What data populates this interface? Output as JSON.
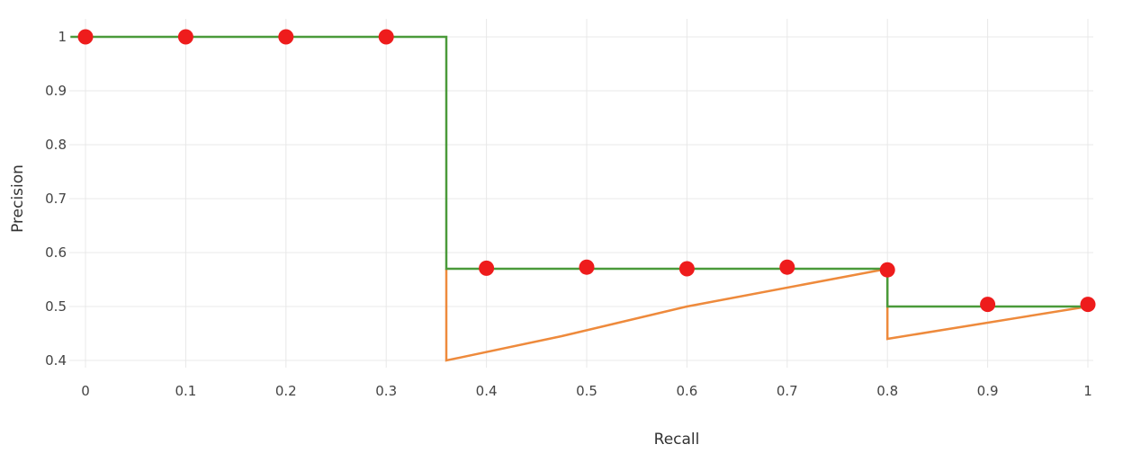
{
  "chart_data": {
    "type": "line",
    "title": "",
    "xlabel": "Recall",
    "ylabel": "Precision",
    "xlim": [
      0,
      1
    ],
    "ylim": [
      0.4,
      1
    ],
    "grid": true,
    "legend": "none",
    "x_ticks": [
      "0",
      "0.1",
      "0.2",
      "0.3",
      "0.4",
      "0.5",
      "0.6",
      "0.7",
      "0.8",
      "0.9",
      "1"
    ],
    "y_ticks": [
      "0.4",
      "0.5",
      "0.6",
      "0.7",
      "0.8",
      "0.9",
      "1"
    ],
    "series": [
      {
        "kind": "step-line",
        "color": "#4a9a3a",
        "points": [
          [
            -0.015,
            1
          ],
          [
            0.36,
            1
          ],
          [
            0.36,
            0.57
          ],
          [
            0.8,
            0.57
          ],
          [
            0.8,
            0.5
          ],
          [
            1,
            0.5
          ]
        ]
      },
      {
        "kind": "line",
        "color": "#ee8a3c",
        "points": [
          [
            0.36,
            0.57
          ],
          [
            0.36,
            0.4
          ],
          [
            0.475,
            0.445
          ],
          [
            0.6,
            0.5
          ],
          [
            0.8,
            0.57
          ],
          [
            0.8,
            0.44
          ],
          [
            1,
            0.5
          ]
        ]
      },
      {
        "kind": "scatter",
        "color": "#ee1c1c",
        "points": [
          [
            0,
            1
          ],
          [
            0.1,
            1
          ],
          [
            0.2,
            1
          ],
          [
            0.3,
            1
          ],
          [
            0.4,
            0.571
          ],
          [
            0.5,
            0.573
          ],
          [
            0.6,
            0.57
          ],
          [
            0.7,
            0.573
          ],
          [
            0.8,
            0.568
          ],
          [
            0.9,
            0.504
          ],
          [
            1,
            0.504
          ]
        ]
      }
    ]
  }
}
